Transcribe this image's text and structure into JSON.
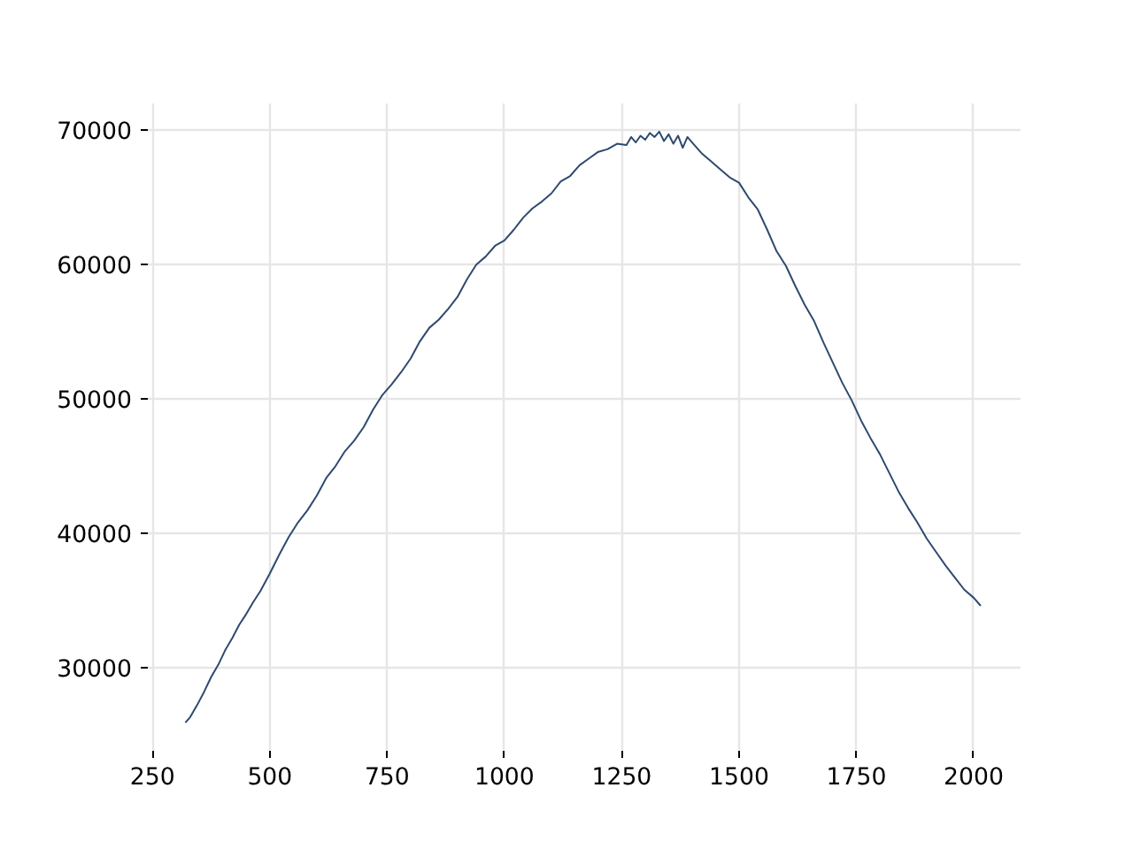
{
  "chart_data": {
    "type": "line",
    "x": [
      320,
      330,
      345,
      360,
      375,
      390,
      405,
      420,
      435,
      450,
      465,
      480,
      500,
      520,
      540,
      560,
      580,
      600,
      620,
      640,
      660,
      680,
      700,
      720,
      740,
      760,
      780,
      800,
      820,
      840,
      860,
      880,
      900,
      920,
      940,
      960,
      980,
      1000,
      1020,
      1040,
      1060,
      1080,
      1100,
      1120,
      1140,
      1160,
      1180,
      1200,
      1220,
      1240,
      1260,
      1270,
      1280,
      1290,
      1300,
      1310,
      1320,
      1330,
      1340,
      1350,
      1360,
      1370,
      1380,
      1390,
      1400,
      1420,
      1440,
      1460,
      1480,
      1500,
      1520,
      1540,
      1560,
      1580,
      1600,
      1620,
      1640,
      1660,
      1680,
      1700,
      1720,
      1740,
      1760,
      1780,
      1800,
      1820,
      1840,
      1860,
      1880,
      1900,
      1920,
      1940,
      1960,
      1980,
      2000,
      2015
    ],
    "series": [
      {
        "color": "#2e4a6f",
        "values": [
          25900,
          26300,
          27200,
          28200,
          29300,
          30200,
          31300,
          32200,
          33200,
          34000,
          34900,
          35700,
          37000,
          38400,
          39700,
          40800,
          41700,
          42800,
          44100,
          45000,
          46100,
          46900,
          47900,
          49200,
          50300,
          51100,
          52000,
          53000,
          54300,
          55300,
          55900,
          56700,
          57600,
          58900,
          60000,
          60600,
          61400,
          61800,
          62600,
          63500,
          64200,
          64700,
          65300,
          66200,
          66600,
          67400,
          67900,
          68400,
          68600,
          69000,
          68900,
          69500,
          69100,
          69600,
          69300,
          69800,
          69500,
          69900,
          69200,
          69700,
          69000,
          69600,
          68700,
          69500,
          69100,
          68300,
          67700,
          67100,
          66500,
          66100,
          65000,
          64100,
          62600,
          61000,
          59900,
          58400,
          57000,
          55800,
          54200,
          52700,
          51200,
          49900,
          48400,
          47100,
          45900,
          44500,
          43100,
          41900,
          40800,
          39600,
          38600,
          37600,
          36700,
          35800,
          35200,
          34600
        ]
      }
    ],
    "xlim": [
      240,
      2100
    ],
    "ylim": [
      23800,
      72000
    ],
    "xticks": [
      250,
      500,
      750,
      1000,
      1250,
      1500,
      1750,
      2000
    ],
    "yticks": [
      30000,
      40000,
      50000,
      60000,
      70000
    ],
    "grid": true,
    "line_style": "solid",
    "marker": "none"
  }
}
